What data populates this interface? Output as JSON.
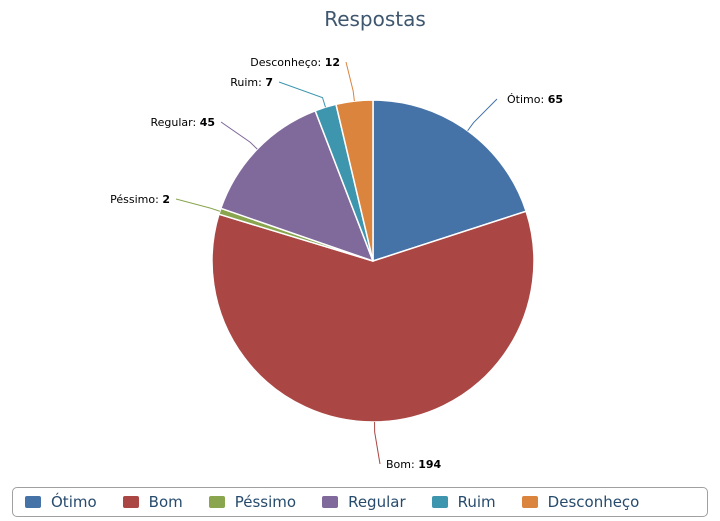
{
  "chart_data": {
    "type": "pie",
    "title": "Respostas",
    "slices": [
      {
        "label": "Ótimo",
        "value": 65,
        "color": "#4572a7"
      },
      {
        "label": "Bom",
        "value": 194,
        "color": "#aa4643"
      },
      {
        "label": "Péssimo",
        "value": 2,
        "color": "#89a54e"
      },
      {
        "label": "Regular",
        "value": 45,
        "color": "#80699b"
      },
      {
        "label": "Ruim",
        "value": 7,
        "color": "#3d96ae"
      },
      {
        "label": "Desconheço",
        "value": 12,
        "color": "#db843d"
      }
    ],
    "legend_position": "bottom"
  }
}
